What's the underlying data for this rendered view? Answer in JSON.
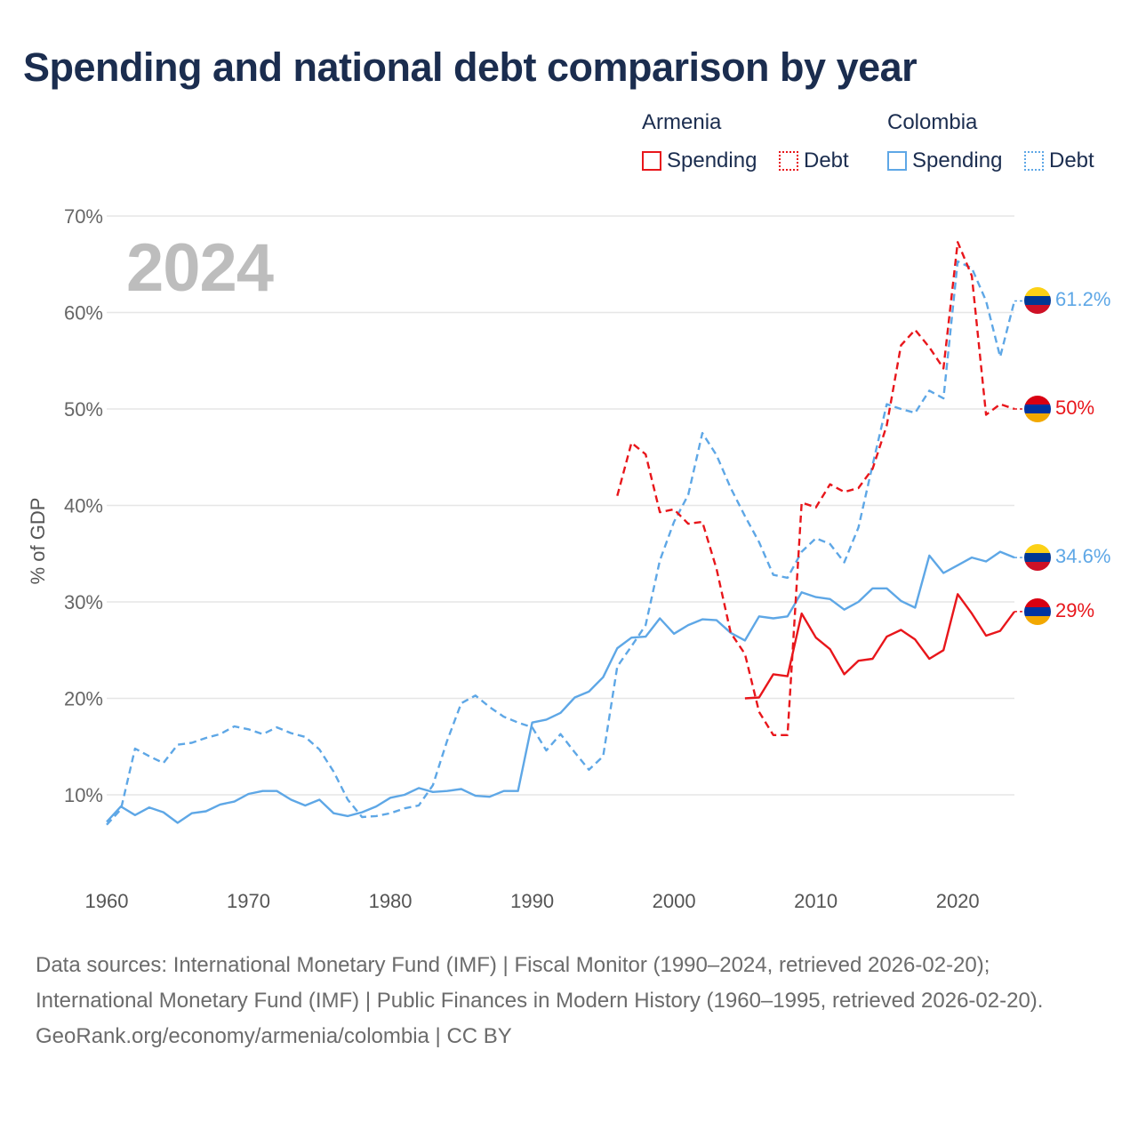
{
  "title": "Spending and national debt comparison by year",
  "year_label": "2024",
  "legend": {
    "groups": [
      {
        "country": "Armenia",
        "color": "#e8161b",
        "items": [
          {
            "label": "Spending",
            "style": "solid"
          },
          {
            "label": "Debt",
            "style": "dotted"
          }
        ]
      },
      {
        "country": "Colombia",
        "color": "#5ea7e6",
        "items": [
          {
            "label": "Spending",
            "style": "solid"
          },
          {
            "label": "Debt",
            "style": "dotted"
          }
        ]
      }
    ]
  },
  "end_labels": [
    {
      "country": "Colombia",
      "series": "Debt",
      "text": "61.2%",
      "value": 61.2,
      "color": "#5ea7e6",
      "flag": [
        "#fcd116",
        "#003893",
        "#ce1126"
      ]
    },
    {
      "country": "Armenia",
      "series": "Debt",
      "text": "50%",
      "value": 50.0,
      "color": "#e8161b",
      "flag": [
        "#d90012",
        "#0033a0",
        "#f2a800"
      ]
    },
    {
      "country": "Colombia",
      "series": "Spending",
      "text": "34.6%",
      "value": 34.6,
      "color": "#5ea7e6",
      "flag": [
        "#fcd116",
        "#003893",
        "#ce1126"
      ]
    },
    {
      "country": "Armenia",
      "series": "Spending",
      "text": "29%",
      "value": 29.0,
      "color": "#e8161b",
      "flag": [
        "#d90012",
        "#0033a0",
        "#f2a800"
      ]
    }
  ],
  "footer": {
    "sources": "Data sources: International Monetary Fund (IMF) | Fiscal Monitor (1990–2024, retrieved 2026-02-20); International Monetary Fund (IMF) | Public Finances in Modern History (1960–1995, retrieved 2026-02-20).",
    "credit": "GeoRank.org/economy/armenia/colombia | CC BY"
  },
  "chart_data": {
    "type": "line",
    "title": "Spending and national debt comparison by year",
    "xlabel": "",
    "ylabel": "% of GDP",
    "xlim": [
      1960,
      2024
    ],
    "ylim": [
      3,
      70
    ],
    "x_ticks": [
      1960,
      1970,
      1980,
      1990,
      2000,
      2010,
      2020
    ],
    "y_ticks": [
      10,
      20,
      30,
      40,
      50,
      60,
      70
    ],
    "y_tick_labels": [
      "10%",
      "20%",
      "30%",
      "40%",
      "50%",
      "60%",
      "70%"
    ],
    "grid": true,
    "series": [
      {
        "name": "Colombia Spending",
        "country": "Colombia",
        "color": "#5ea7e6",
        "dash": "solid",
        "x": [
          1960,
          1961,
          1962,
          1963,
          1964,
          1965,
          1966,
          1967,
          1968,
          1969,
          1970,
          1971,
          1972,
          1973,
          1974,
          1975,
          1976,
          1977,
          1978,
          1979,
          1980,
          1981,
          1982,
          1983,
          1984,
          1985,
          1986,
          1987,
          1988,
          1989,
          1990,
          1991,
          1992,
          1993,
          1994,
          1995,
          1996,
          1997,
          1998,
          1999,
          2000,
          2001,
          2002,
          2003,
          2004,
          2005,
          2006,
          2007,
          2008,
          2009,
          2010,
          2011,
          2012,
          2013,
          2014,
          2015,
          2016,
          2017,
          2018,
          2019,
          2020,
          2021,
          2022,
          2023,
          2024
        ],
        "values": [
          7.2,
          8.8,
          7.9,
          8.7,
          8.2,
          7.1,
          8.1,
          8.3,
          9.0,
          9.3,
          10.1,
          10.4,
          10.4,
          9.5,
          8.9,
          9.5,
          8.1,
          7.8,
          8.2,
          8.8,
          9.7,
          10.0,
          10.7,
          10.3,
          10.4,
          10.6,
          9.9,
          9.8,
          10.4,
          10.4,
          17.5,
          17.8,
          18.5,
          20.1,
          20.7,
          22.2,
          25.2,
          26.3,
          26.4,
          28.3,
          26.7,
          27.6,
          28.2,
          28.1,
          26.8,
          26.0,
          28.5,
          28.3,
          28.5,
          31.0,
          30.5,
          30.3,
          29.2,
          30.0,
          31.4,
          31.4,
          30.1,
          29.4,
          34.8,
          33.0,
          33.8,
          34.6,
          34.2,
          35.2,
          34.6
        ]
      },
      {
        "name": "Colombia Debt",
        "country": "Colombia",
        "color": "#5ea7e6",
        "dash": "dashed",
        "x": [
          1960,
          1961,
          1962,
          1963,
          1964,
          1965,
          1966,
          1967,
          1968,
          1969,
          1970,
          1971,
          1972,
          1973,
          1974,
          1975,
          1976,
          1977,
          1978,
          1979,
          1980,
          1981,
          1982,
          1983,
          1984,
          1985,
          1986,
          1987,
          1988,
          1989,
          1990,
          1991,
          1992,
          1993,
          1994,
          1995,
          1996,
          1997,
          1998,
          1999,
          2000,
          2001,
          2002,
          2003,
          2004,
          2005,
          2006,
          2007,
          2008,
          2009,
          2010,
          2011,
          2012,
          2013,
          2014,
          2015,
          2016,
          2017,
          2018,
          2019,
          2020,
          2021,
          2022,
          2023,
          2024
        ],
        "values": [
          6.9,
          8.5,
          14.8,
          14.0,
          13.3,
          15.2,
          15.4,
          15.9,
          16.3,
          17.1,
          16.8,
          16.3,
          17.0,
          16.4,
          16.0,
          14.7,
          12.4,
          9.5,
          7.7,
          7.8,
          8.1,
          8.6,
          8.9,
          11.0,
          15.6,
          19.5,
          20.3,
          19.1,
          18.1,
          17.5,
          17.0,
          14.6,
          16.3,
          14.4,
          12.6,
          14.0,
          23.3,
          25.4,
          27.6,
          34.3,
          38.3,
          41.1,
          47.5,
          45.2,
          41.8,
          38.9,
          36.2,
          32.8,
          32.5,
          35.2,
          36.6,
          36.0,
          34.1,
          37.7,
          44.2,
          50.5,
          50.0,
          49.6,
          51.9,
          51.1,
          65.3,
          64.6,
          61.2,
          55.4,
          61.2
        ]
      },
      {
        "name": "Armenia Spending",
        "country": "Armenia",
        "color": "#e8161b",
        "dash": "solid",
        "x": [
          2005,
          2006,
          2007,
          2008,
          2009,
          2010,
          2011,
          2012,
          2013,
          2014,
          2015,
          2016,
          2017,
          2018,
          2019,
          2020,
          2021,
          2022,
          2023,
          2024
        ],
        "values": [
          20.0,
          20.1,
          22.5,
          22.3,
          28.8,
          26.3,
          25.1,
          22.5,
          23.9,
          24.1,
          26.4,
          27.1,
          26.1,
          24.1,
          25.0,
          30.8,
          28.8,
          26.5,
          27.0,
          29.0
        ]
      },
      {
        "name": "Armenia Debt",
        "country": "Armenia",
        "color": "#e8161b",
        "dash": "dashed",
        "x": [
          1996,
          1997,
          1998,
          1999,
          2000,
          2001,
          2002,
          2003,
          2004,
          2005,
          2006,
          2007,
          2008,
          2009,
          2010,
          2011,
          2012,
          2013,
          2014,
          2015,
          2016,
          2017,
          2018,
          2019,
          2020,
          2021,
          2022,
          2023,
          2024
        ],
        "values": [
          41.0,
          46.5,
          45.3,
          39.3,
          39.6,
          38.1,
          38.3,
          33.4,
          26.8,
          24.6,
          18.6,
          16.2,
          16.2,
          40.3,
          39.8,
          42.2,
          41.4,
          41.8,
          43.8,
          48.3,
          56.6,
          58.2,
          56.4,
          54.2,
          67.3,
          63.8,
          49.4,
          50.5,
          50.0
        ]
      }
    ]
  }
}
